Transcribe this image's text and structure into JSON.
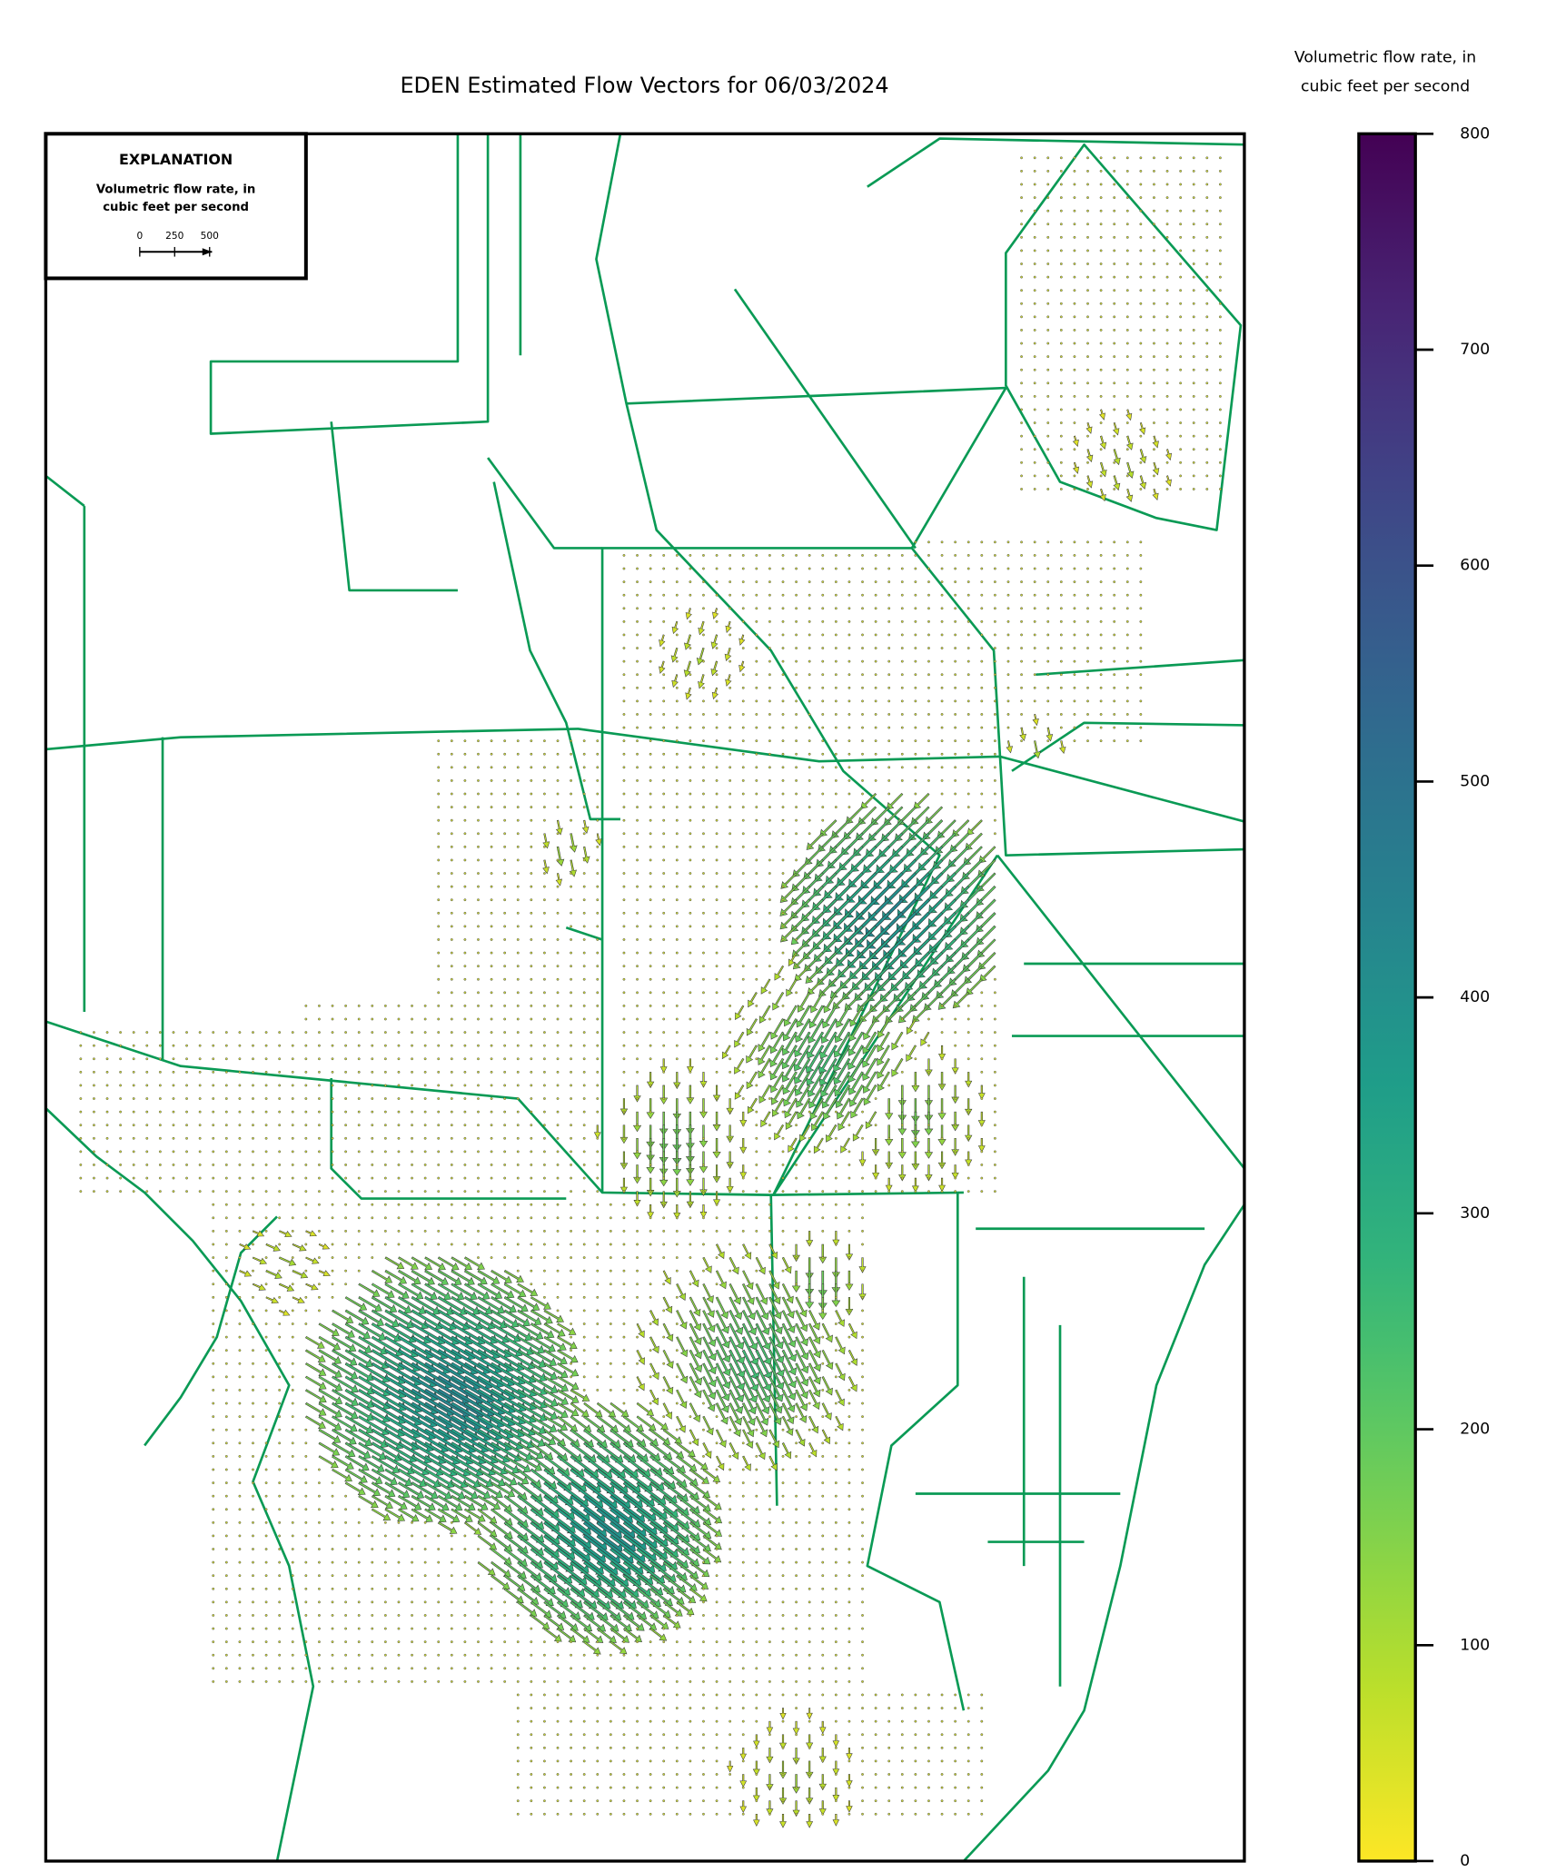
{
  "title": "EDEN Estimated Flow Vectors for 06/03/2024",
  "colorbar": {
    "label": [
      "Volumetric flow rate, in",
      "cubic feet per second"
    ],
    "lim": [
      0,
      800
    ],
    "ticks": [
      0,
      100,
      200,
      300,
      400,
      500,
      600,
      700,
      800
    ],
    "colormap": "viridis_r"
  },
  "explanation": {
    "title": "EXPLANATION",
    "text": [
      "Volumetric flow rate, in",
      "cubic feet per second"
    ],
    "scale_ticks": [
      0,
      250,
      500
    ]
  }
}
